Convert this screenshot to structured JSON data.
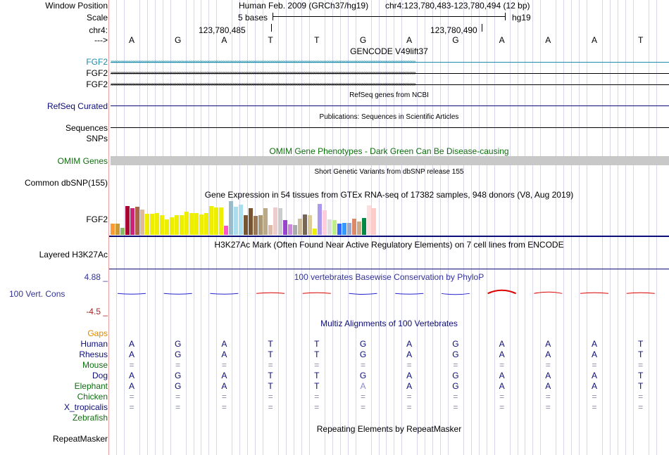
{
  "ruler": {
    "window_position_label": "Window Position",
    "scale_label": "Scale",
    "chrom_label": "chr4:",
    "strand_label": "--->",
    "assembly_text": "Human Feb. 2009 (GRCh37/hg19)",
    "position_text": "chr4:123,780,483-123,780,494 (12 bp)",
    "scale_text": "5 bases",
    "db_text": "hg19",
    "pos_ticks": [
      "123,780,485",
      "123,780,490"
    ],
    "bases": [
      "A",
      "G",
      "A",
      "T",
      "T",
      "G",
      "A",
      "G",
      "A",
      "A",
      "A",
      "T"
    ]
  },
  "gencode": {
    "title": "GENCODE V49lift37",
    "genes": [
      "FGF2",
      "FGF2",
      "FGF2"
    ],
    "colors": [
      "#1e8ca8",
      "#000000",
      "#000000"
    ]
  },
  "refseq": {
    "title": "RefSeq genes from NCBI",
    "label": "RefSeq Curated",
    "color": "#0c0c78"
  },
  "publications": {
    "title": "Publications: Sequences in Scientific Articles",
    "label_seq": "Sequences",
    "label_snps": "SNPs"
  },
  "omim": {
    "title": "OMIM Gene Phenotypes - Dark Green Can Be Disease-causing",
    "label": "OMIM Genes",
    "color": "#0e6e0e",
    "bar_color": "#c8c8c8"
  },
  "dbsnp": {
    "title": "Short Genetic Variants from dbSNP release 155",
    "label": "Common dbSNP(155)"
  },
  "gtex": {
    "title": "Gene Expression in 54 tissues from GTEx RNA-seq of 17382 samples, 948 donors (V8, Aug 2019)",
    "label": "FGF2",
    "bar_colors": [
      "#ff9933",
      "#cc9933",
      "#88bb66",
      "#aa0033",
      "#cc2277",
      "#aa6644",
      "#ddbb99",
      "#eeee00",
      "#eeee00",
      "#eeee00",
      "#eeee00",
      "#eeee00",
      "#eeee00",
      "#eeee00",
      "#eeee00",
      "#eeee00",
      "#eeee00",
      "#eeee00",
      "#eeee00",
      "#eeee00",
      "#eeee00",
      "#eeee00",
      "#eeee00",
      "#ff55cc",
      "#99bbcc",
      "#aaddee",
      "#aaddee",
      "#775533",
      "#775533",
      "#997755",
      "#aa9977",
      "#bbaa88",
      "#ddbbaa",
      "#eecccc",
      "#cccccc",
      "#9944cc",
      "#cc88dd",
      "#aaaaaa",
      "#ccbb99",
      "#776655",
      "#ddcc99",
      "#eeee00",
      "#aa99ee",
      "#ffccdd",
      "#dddddd",
      "#bbee88",
      "#3366ff",
      "#3399ff",
      "#99aacc",
      "#dd8866",
      "#ccaa88",
      "#008844",
      "#ffdddd",
      "#ffcccc"
    ],
    "values": [
      0.33,
      0.33,
      0.21,
      0.83,
      0.78,
      0.82,
      0.74,
      0.61,
      0.61,
      0.63,
      0.58,
      0.44,
      0.52,
      0.57,
      0.58,
      0.67,
      0.63,
      0.63,
      0.6,
      0.64,
      0.84,
      0.8,
      0.79,
      0.26,
      0.97,
      0.82,
      0.87,
      0.57,
      0.77,
      0.56,
      0.58,
      0.78,
      0.28,
      0.8,
      0.78,
      0.42,
      0.3,
      0.28,
      0.47,
      0.59,
      0.57,
      0.18,
      0.9,
      0.72,
      0.44,
      0.43,
      0.32,
      0.35,
      0.34,
      0.47,
      0.38,
      0.48,
      0.85,
      0.78
    ]
  },
  "h3k27ac": {
    "title": "H3K27Ac Mark (Often Found Near Active Regulatory Elements) on 7 cell lines from ENCODE",
    "label": "Layered H3K27Ac"
  },
  "phylop": {
    "title": "100 vertebrates Basewise Conservation by PhyloP",
    "label": "100 Vert. Cons",
    "ymax_label": "4.88 _",
    "ymin_label": "-4.5 _",
    "ylim": [
      -4.5,
      4.88
    ],
    "values": [
      -0.1,
      -0.1,
      -0.1,
      0.3,
      0,
      -0.4,
      -0.1,
      -0.5,
      1.5,
      0.7,
      0,
      0
    ],
    "pos_color": "#dd0000",
    "neg_color": "#2222cc",
    "title_color": "#333399"
  },
  "multiz": {
    "title": "Multiz Alignments of 100 Vertebrates",
    "title_color": "#0c0c78",
    "gaps_label": "Gaps",
    "gaps_color": "#e08800",
    "species": [
      {
        "name": "Human",
        "color": "#0c0c78",
        "bases": [
          "A",
          "G",
          "A",
          "T",
          "T",
          "G",
          "A",
          "G",
          "A",
          "A",
          "A",
          "T"
        ]
      },
      {
        "name": "Rhesus",
        "color": "#0c0c78",
        "bases": [
          "A",
          "G",
          "A",
          "T",
          "T",
          "G",
          "A",
          "G",
          "A",
          "A",
          "A",
          "T"
        ]
      },
      {
        "name": "Mouse",
        "color": "#0e6e0e",
        "bases": [
          "=",
          "=",
          "=",
          "=",
          "=",
          "=",
          "=",
          "=",
          "=",
          "=",
          "=",
          "="
        ]
      },
      {
        "name": "Dog",
        "color": "#0c0c78",
        "bases": [
          "A",
          "G",
          "A",
          "T",
          "T",
          "G",
          "A",
          "G",
          "A",
          "A",
          "A",
          "T"
        ]
      },
      {
        "name": "Elephant",
        "color": "#0e6e0e",
        "bases": [
          "A",
          "G",
          "A",
          "T",
          "T",
          "A",
          "A",
          "G",
          "A",
          "A",
          "A",
          "T"
        ]
      },
      {
        "name": "Chicken",
        "color": "#0e6e0e",
        "bases": [
          "=",
          "=",
          "=",
          "=",
          "=",
          "=",
          "=",
          "=",
          "=",
          "=",
          "=",
          "="
        ]
      },
      {
        "name": "X_tropicalis",
        "color": "#0c0c78",
        "bases": [
          "=",
          "=",
          "=",
          "=",
          "=",
          "=",
          "=",
          "=",
          "=",
          "=",
          "=",
          "="
        ]
      },
      {
        "name": "Zebrafish",
        "color": "#0e6e0e",
        "bases": []
      }
    ]
  },
  "repeatmasker": {
    "title": "Repeating Elements by RepeatMasker",
    "label": "RepeatMasker"
  }
}
